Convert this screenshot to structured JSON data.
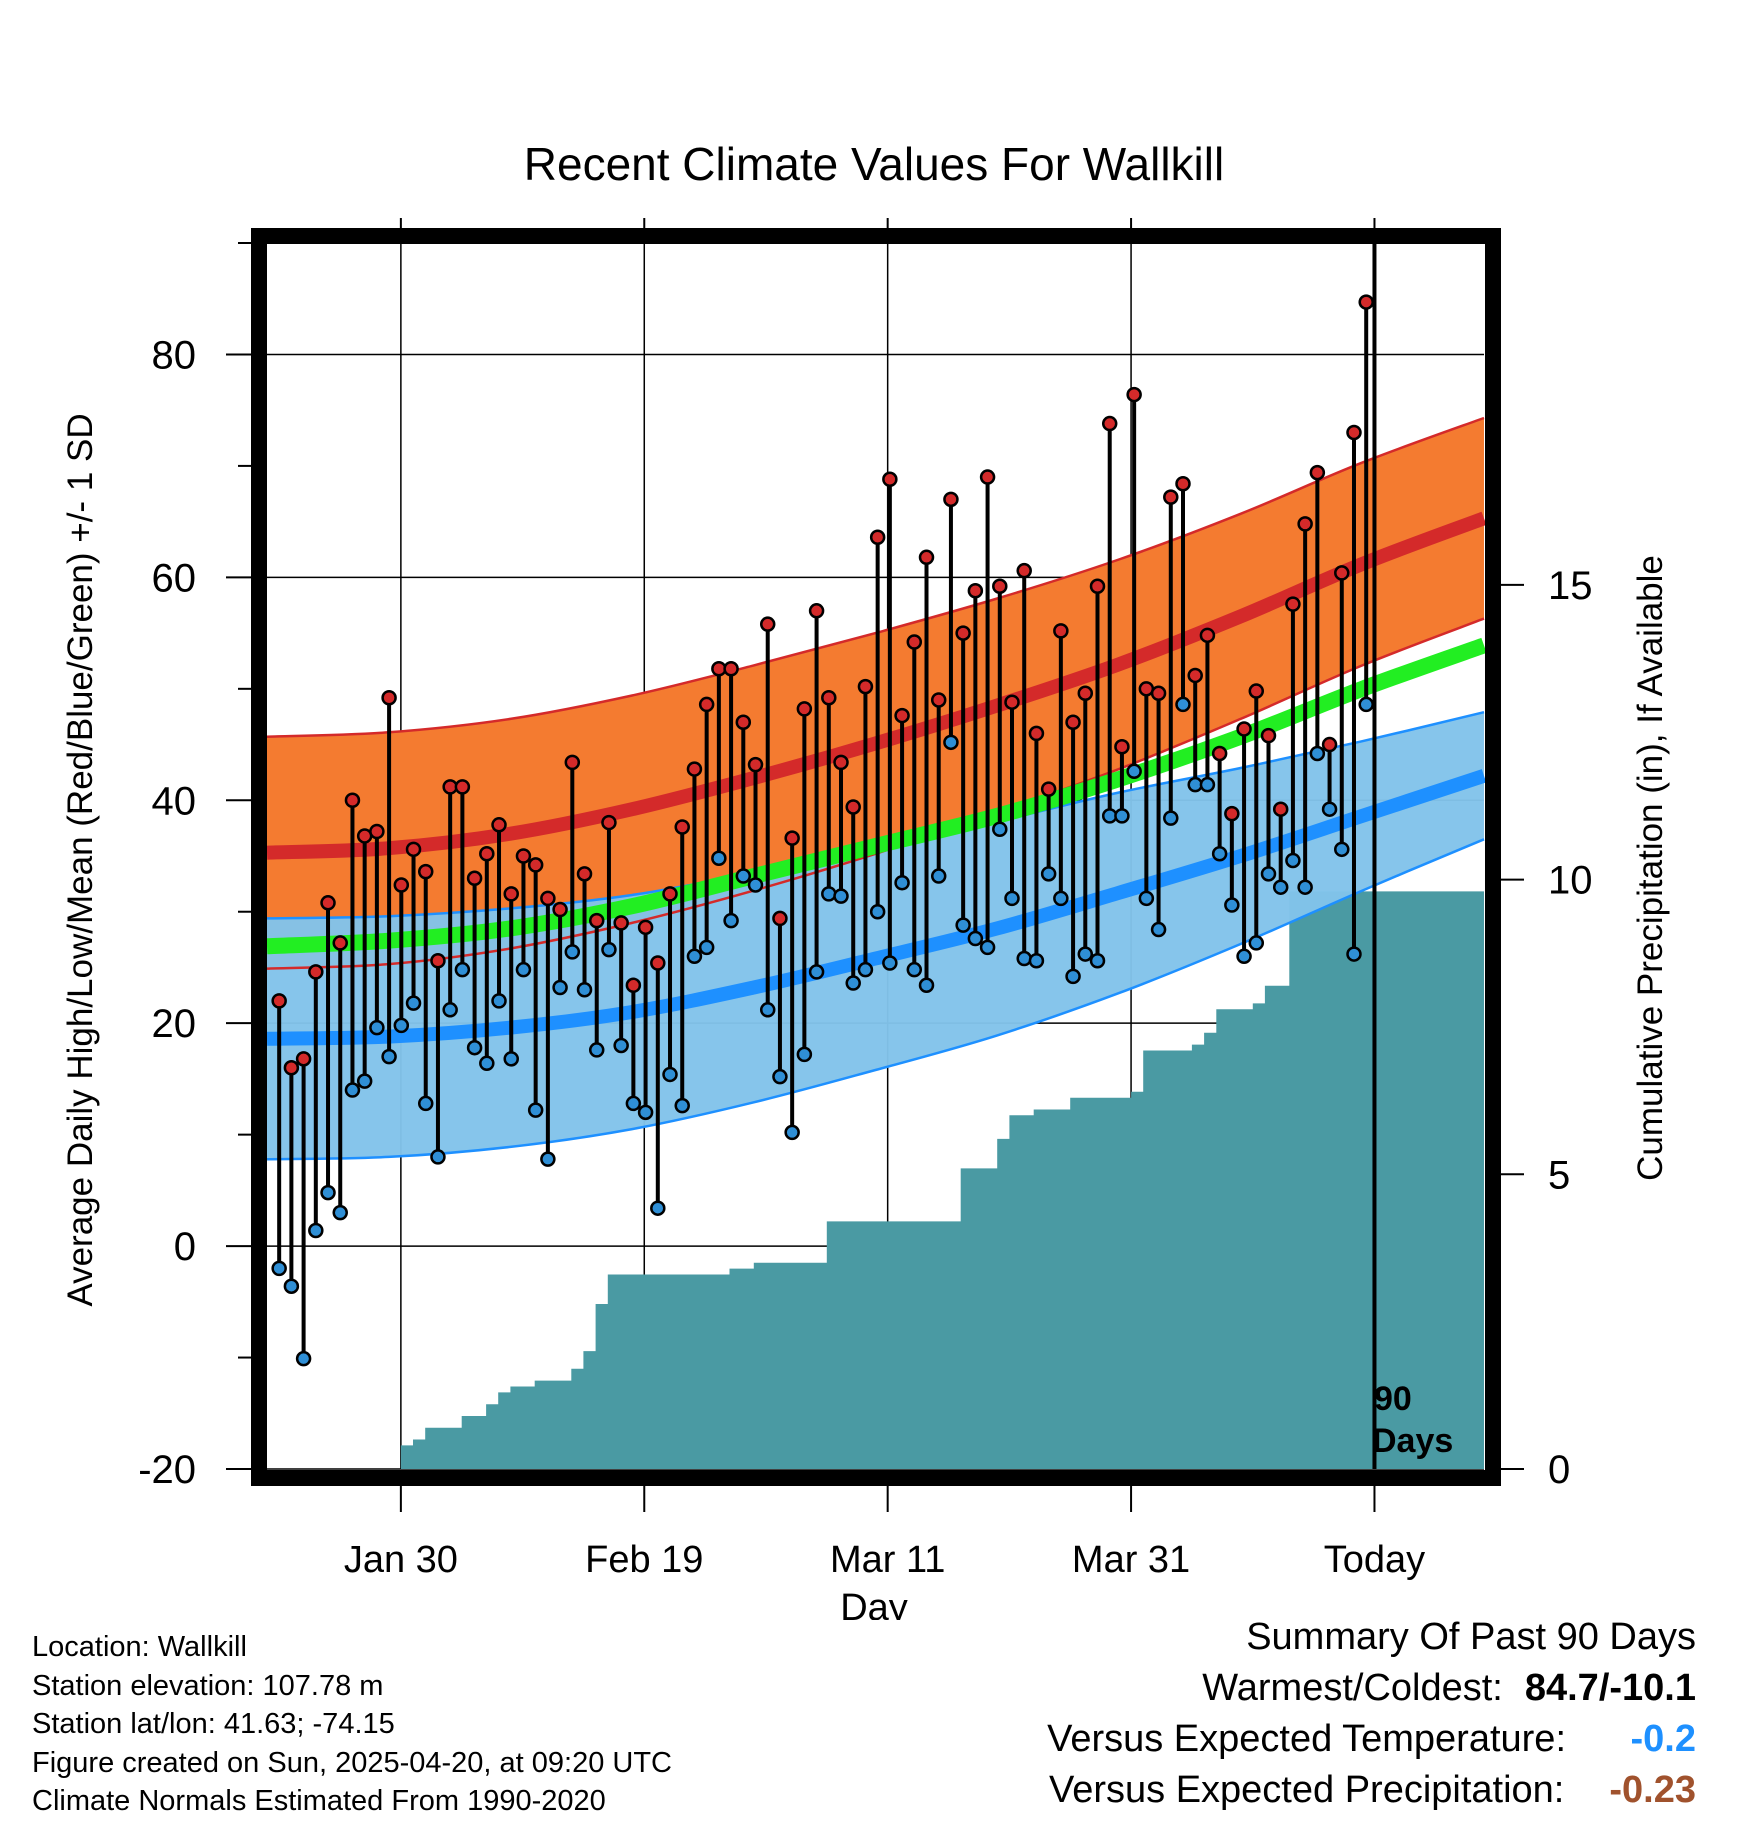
{
  "chart_data": {
    "type": "line",
    "title": "Recent Climate Values For Wallkill",
    "xlabel": "Day",
    "ylabel_left": "Average Daily High/Low/Mean (Red/Blue/Green) +/- 1 SD",
    "ylabel_right": "Cumulative Precipitation (in), If Available",
    "ylim_left": [
      -20,
      90
    ],
    "ylim_right": [
      0,
      20.8
    ],
    "x_ticks": [
      {
        "label": "Jan 30",
        "day": 11
      },
      {
        "label": "Feb 19",
        "day": 31
      },
      {
        "label": "Mar 11",
        "day": 51
      },
      {
        "label": "Mar 31",
        "day": 71
      },
      {
        "label": "Today",
        "day": 91
      }
    ],
    "y_ticks_left": [
      "-20",
      "0",
      "20",
      "40",
      "60",
      "80"
    ],
    "y_ticks_right": [
      "0",
      "5",
      "10",
      "15"
    ],
    "today_label": "90 Days",
    "grid": true,
    "colors": {
      "high_band": "#f47b30",
      "high_mean": "#d42a2a",
      "low_band": "#82c3ea",
      "low_mean": "#1e90ff",
      "mean_line": "#22ee22",
      "precip_fill": "#4a9aa3",
      "high_dot": "#d42a2a",
      "low_dot": "#2f8fd6"
    },
    "normals": {
      "days": [
        0,
        10,
        20,
        30,
        40,
        50,
        60,
        70,
        80,
        90,
        100
      ],
      "high_mean": [
        35.3,
        35.7,
        37.0,
        39.2,
        42.0,
        45.1,
        48.5,
        52.2,
        56.5,
        61.2,
        65.3
      ],
      "high_sd": [
        10.4,
        10.4,
        10.3,
        10.2,
        10.1,
        9.9,
        9.6,
        9.4,
        9.2,
        9.1,
        9.0
      ],
      "low_mean": [
        18.6,
        18.8,
        19.6,
        21.0,
        23.2,
        25.8,
        28.5,
        31.7,
        35.0,
        38.6,
        42.2
      ],
      "low_sd": [
        10.8,
        10.8,
        10.7,
        10.5,
        10.3,
        10.0,
        9.6,
        9.0,
        7.9,
        6.7,
        5.7
      ],
      "avg_mean": [
        26.9,
        27.4,
        28.5,
        30.5,
        33.2,
        35.9,
        38.6,
        41.9,
        45.7,
        50.0,
        53.9
      ]
    },
    "series": [
      {
        "name": "High",
        "values": [
          22.0,
          16.0,
          16.8,
          24.6,
          30.8,
          27.2,
          40.0,
          36.8,
          37.2,
          49.2,
          32.4,
          35.6,
          33.6,
          25.6,
          41.2,
          41.2,
          33.0,
          35.2,
          37.8,
          31.6,
          35.0,
          34.2,
          31.2,
          30.2,
          43.4,
          33.4,
          29.2,
          38.0,
          29.0,
          23.4,
          28.6,
          25.4,
          31.6,
          37.6,
          42.8,
          48.6,
          51.8,
          51.8,
          47.0,
          43.2,
          55.8,
          29.4,
          36.6,
          48.2,
          57.0,
          49.2,
          43.4,
          39.4,
          50.2,
          63.6,
          68.8,
          47.6,
          54.2,
          61.8,
          49.0,
          67.0,
          55.0,
          58.8,
          69.0,
          59.2,
          48.8,
          60.6,
          46.0,
          41.0,
          55.2,
          47.0,
          49.6,
          59.2,
          73.8,
          44.8,
          76.4,
          50.0,
          49.6,
          67.2,
          68.4,
          51.2,
          54.8,
          44.2,
          38.8,
          46.4,
          49.8,
          45.8,
          39.2,
          57.6,
          64.8,
          69.4,
          45.0,
          60.4,
          73.0,
          84.7
        ]
      },
      {
        "name": "Low",
        "values": [
          -2.0,
          -3.6,
          -10.1,
          1.4,
          4.8,
          3.0,
          14.0,
          14.8,
          19.6,
          17.0,
          19.8,
          21.8,
          12.8,
          8.0,
          21.2,
          24.8,
          17.8,
          16.4,
          22.0,
          16.8,
          24.8,
          12.2,
          7.8,
          23.2,
          26.4,
          23.0,
          17.6,
          26.6,
          18.0,
          12.8,
          12.0,
          3.4,
          15.4,
          12.6,
          26.0,
          26.8,
          34.8,
          29.2,
          33.2,
          32.4,
          21.2,
          15.2,
          10.2,
          17.2,
          24.6,
          31.6,
          31.4,
          23.6,
          24.8,
          30.0,
          25.4,
          32.6,
          24.8,
          23.4,
          33.2,
          45.2,
          28.8,
          27.6,
          26.8,
          37.4,
          31.2,
          25.8,
          25.6,
          33.4,
          31.2,
          24.2,
          26.2,
          25.6,
          38.6,
          38.6,
          42.6,
          31.2,
          28.4,
          38.4,
          48.6,
          41.4,
          41.4,
          35.2,
          30.6,
          26.0,
          27.2,
          33.4,
          32.2,
          34.6,
          32.2,
          44.2,
          39.2,
          35.6,
          26.2,
          48.6
        ]
      },
      {
        "name": "Cumulative Precipitation",
        "days": [
          11,
          12,
          13,
          14,
          16,
          18,
          19,
          20,
          22,
          25,
          26,
          27,
          28,
          29,
          31,
          38,
          40,
          41,
          46,
          47,
          49,
          50,
          57,
          58,
          59,
          60,
          61,
          62,
          63,
          66,
          67,
          70,
          71,
          72,
          73,
          76,
          77,
          78,
          79,
          80,
          81,
          82,
          84,
          85,
          86,
          90,
          100
        ],
        "values": [
          0.4,
          0.5,
          0.7,
          0.7,
          0.9,
          1.1,
          1.3,
          1.4,
          1.5,
          1.7,
          2.0,
          2.8,
          3.3,
          3.3,
          3.3,
          3.4,
          3.5,
          3.5,
          4.2,
          4.2,
          4.2,
          4.2,
          5.1,
          5.1,
          5.1,
          5.6,
          6.0,
          6.0,
          6.1,
          6.3,
          6.3,
          6.3,
          6.4,
          7.1,
          7.1,
          7.2,
          7.4,
          7.8,
          7.8,
          7.8,
          7.9,
          8.2,
          9.8,
          9.8,
          9.8,
          9.8,
          9.8
        ]
      }
    ]
  },
  "info": {
    "location": "Location: Wallkill",
    "elevation": "Station elevation: 107.78 m",
    "latlon": "Station lat/lon: 41.63; -74.15",
    "created": "Figure created on Sun, 2025-04-20, at 09:20 UTC",
    "normals": "Climate Normals Estimated From 1990-2020"
  },
  "summary": {
    "title": "Summary Of Past 90 Days",
    "warm_cold_label": "Warmest/Coldest:",
    "warm_cold_value": "84.7/-10.1",
    "temp_label": "Versus Expected Temperature:",
    "temp_value": "-0.2",
    "temp_color": "#1e90ff",
    "precip_label": "Versus Expected Precipitation:",
    "precip_value": "-0.23",
    "precip_color": "#a0522d"
  }
}
